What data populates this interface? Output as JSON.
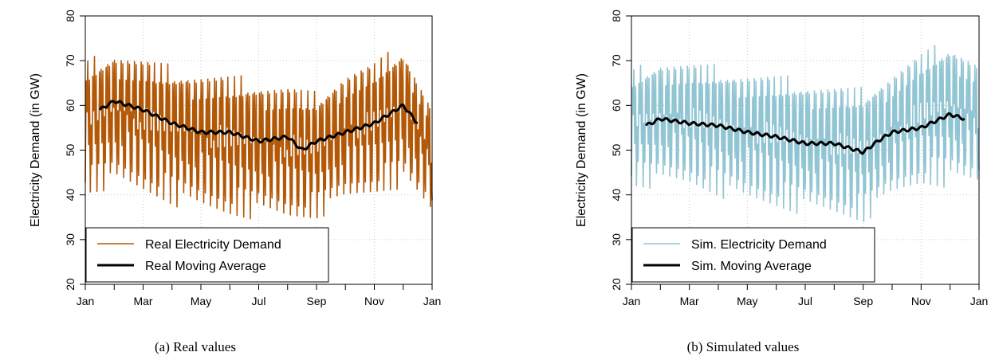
{
  "chart_data": [
    {
      "type": "line",
      "caption": "(a) Real values",
      "ylabel": "Electricity Demand (in GW)",
      "ylim": [
        20,
        80
      ],
      "yticks": [
        20,
        30,
        40,
        50,
        60,
        70,
        80
      ],
      "xtick_labels": [
        "Jan",
        "Mar",
        "May",
        "Jul",
        "Sep",
        "Nov",
        "Jan"
      ],
      "grid": true,
      "legend_position": "bottom-left",
      "series": [
        {
          "name": "Real Electricity Demand",
          "color": "#b35806",
          "style": "oscillating",
          "envelope": {
            "month": [
              0,
              1,
              2,
              3,
              4,
              5,
              6,
              7,
              8,
              9,
              10,
              11,
              12
            ],
            "upper": [
              70,
              73,
              71,
              69,
              68,
              67,
              66,
              65,
              63,
              68,
              70,
              74,
              60
            ],
            "lower": [
              38,
              40,
              38,
              36,
              34,
              33,
              33,
              32,
              33,
              36,
              38,
              40,
              34
            ]
          }
        },
        {
          "name": "Real Moving Average",
          "color": "#000000",
          "style": "line",
          "x": [
            0.5,
            1.0,
            2.0,
            3.0,
            4.0,
            5.0,
            6.0,
            7.0,
            7.5,
            8.0,
            9.0,
            10.0,
            11.0,
            11.5
          ],
          "y": [
            59,
            61,
            59,
            56,
            54,
            54,
            52,
            53,
            50,
            52,
            54,
            56,
            60,
            56
          ]
        }
      ]
    },
    {
      "type": "line",
      "caption": "(b) Simulated values",
      "ylabel": "Electricity Demand (in GW)",
      "ylim": [
        20,
        80
      ],
      "yticks": [
        20,
        30,
        40,
        50,
        60,
        70,
        80
      ],
      "xtick_labels": [
        "Jan",
        "Mar",
        "May",
        "Jul",
        "Sep",
        "Nov",
        "Jan"
      ],
      "grid": true,
      "legend_position": "bottom-left",
      "series": [
        {
          "name": "Sim. Electricity Demand",
          "color": "#92c5d3",
          "style": "oscillating",
          "envelope": {
            "month": [
              0,
              1,
              2,
              3,
              4,
              5,
              6,
              7,
              8,
              9,
              10,
              11,
              12
            ],
            "upper": [
              68,
              71,
              70,
              69,
              68,
              67,
              66,
              65,
              64,
              68,
              72,
              75,
              70
            ],
            "lower": [
              40,
              40,
              40,
              38,
              36,
              35,
              34,
              33,
              32,
              37,
              40,
              40,
              40
            ]
          }
        },
        {
          "name": "Sim. Moving Average",
          "color": "#000000",
          "style": "line",
          "x": [
            0.5,
            1.0,
            2.0,
            3.0,
            4.0,
            5.0,
            6.0,
            7.0,
            8.0,
            8.5,
            9.0,
            10.0,
            11.0,
            11.5
          ],
          "y": [
            55.5,
            57,
            56,
            55.5,
            54,
            53,
            51.5,
            51.5,
            49.5,
            52,
            54,
            55,
            58,
            57
          ]
        }
      ]
    }
  ]
}
